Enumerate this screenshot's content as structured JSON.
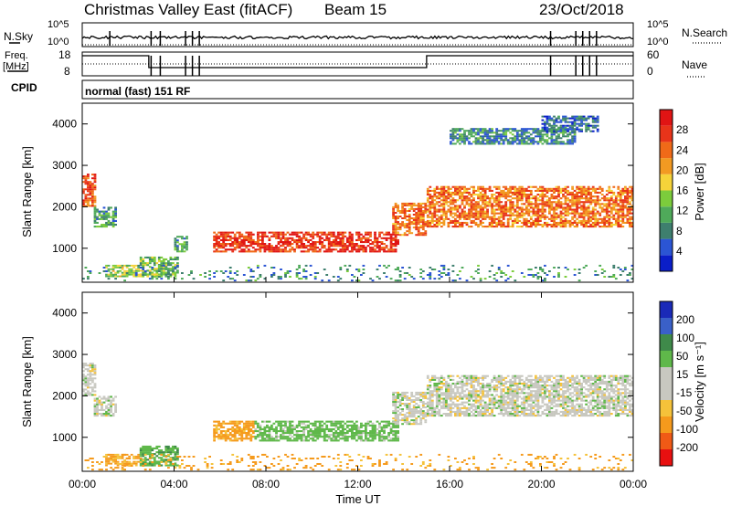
{
  "header": {
    "station": "Christmas Valley East (fitACF)",
    "beam": "Beam 15",
    "date": "23/Oct/2018"
  },
  "status_panels": {
    "nsky_label": "N.Sky",
    "nsearch_label": "N.Search",
    "noise_ticks": [
      "10^5",
      "10^0"
    ],
    "freq_label_line1": "Freq.",
    "freq_label_line2": "[MHz]",
    "freq_ticks": [
      "18",
      "8"
    ],
    "nave_label": "Nave",
    "nave_ticks": [
      "60",
      "0"
    ],
    "cpid_label": "CPID",
    "cpid_text": "normal (fast) 151 RF"
  },
  "colors": {
    "power_scale": [
      "#0a1ec8",
      "#2b55d4",
      "#3e7f6e",
      "#4faa5a",
      "#7ccc3c",
      "#f6d33a",
      "#f29a22",
      "#f06a18",
      "#e8341a",
      "#e01414"
    ],
    "velocity_scale": [
      "#1a2ab8",
      "#3a60c8",
      "#3f8a4a",
      "#5fb84a",
      "#c8c8c0",
      "#c8c8c0",
      "#f5c23a",
      "#f59a1c",
      "#f05a16",
      "#e81010"
    ],
    "nsky": "#000000",
    "nsearch": "#000000"
  },
  "chart_data": [
    {
      "type": "heatmap",
      "panel": "power",
      "title": "",
      "xlabel": "",
      "ylabel": "Slant Range [km]",
      "xlim": [
        "00:00",
        "24:00"
      ],
      "ylim": [
        180,
        4500
      ],
      "y_ticks": [
        "1000",
        "2000",
        "3000",
        "4000"
      ],
      "colorbar_label": "Power [dB]",
      "colorbar_ticks": [
        "4",
        "8",
        "12",
        "16",
        "20",
        "24",
        "28"
      ],
      "colorbar_range": [
        0,
        30
      ],
      "regions": [
        {
          "t0": 0.0,
          "t1": 0.6,
          "r0": 2000,
          "r1": 2800,
          "value": 24
        },
        {
          "t0": 0.5,
          "t1": 1.5,
          "r0": 1500,
          "r1": 2000,
          "value": 10
        },
        {
          "t0": 1.0,
          "t1": 2.5,
          "r0": 300,
          "r1": 600,
          "value": 14
        },
        {
          "t0": 2.5,
          "t1": 4.2,
          "r0": 300,
          "r1": 800,
          "value": 12
        },
        {
          "t0": 4.0,
          "t1": 4.6,
          "r0": 900,
          "r1": 1300,
          "value": 10
        },
        {
          "t0": 5.7,
          "t1": 13.8,
          "r0": 900,
          "r1": 1400,
          "value": 26
        },
        {
          "t0": 13.5,
          "t1": 15.0,
          "r0": 1300,
          "r1": 2100,
          "value": 22
        },
        {
          "t0": 15.0,
          "t1": 24.0,
          "r0": 1500,
          "r1": 2500,
          "value": 22
        },
        {
          "t0": 16.0,
          "t1": 21.5,
          "r0": 3500,
          "r1": 3900,
          "value": 8
        },
        {
          "t0": 20.0,
          "t1": 22.5,
          "r0": 3800,
          "r1": 4200,
          "value": 6
        },
        {
          "t0": 0.0,
          "t1": 24.0,
          "r0": 200,
          "r1": 600,
          "value": 8
        }
      ]
    },
    {
      "type": "heatmap",
      "panel": "velocity",
      "title": "",
      "xlabel": "Time UT",
      "ylabel": "Slant Range [km]",
      "xlim": [
        "00:00",
        "24:00"
      ],
      "ylim": [
        180,
        4500
      ],
      "y_ticks": [
        "1000",
        "2000",
        "3000",
        "4000"
      ],
      "x_ticks": [
        "00:00",
        "04:00",
        "08:00",
        "12:00",
        "16:00",
        "20:00",
        "00:00"
      ],
      "colorbar_label": "Velocity [m s⁻¹]",
      "colorbar_ticks": [
        "200",
        "100",
        "50",
        "15",
        "-15",
        "-50",
        "-100",
        "-200"
      ],
      "regions": [
        {
          "t0": 0.0,
          "t1": 0.6,
          "r0": 2000,
          "r1": 2800,
          "value": 0
        },
        {
          "t0": 0.5,
          "t1": 1.5,
          "r0": 1500,
          "r1": 2000,
          "value": 0
        },
        {
          "t0": 1.0,
          "t1": 2.5,
          "r0": 300,
          "r1": 600,
          "value": -60
        },
        {
          "t0": 2.5,
          "t1": 4.2,
          "r0": 300,
          "r1": 800,
          "value": 40
        },
        {
          "t0": 5.7,
          "t1": 7.5,
          "r0": 900,
          "r1": 1400,
          "value": -60
        },
        {
          "t0": 7.5,
          "t1": 13.8,
          "r0": 900,
          "r1": 1400,
          "value": 30
        },
        {
          "t0": 13.5,
          "t1": 15.0,
          "r0": 1300,
          "r1": 2100,
          "value": 0
        },
        {
          "t0": 15.0,
          "t1": 24.0,
          "r0": 1500,
          "r1": 2500,
          "value": 0
        },
        {
          "t0": 0.0,
          "t1": 24.0,
          "r0": 200,
          "r1": 600,
          "value": -60
        }
      ]
    }
  ]
}
